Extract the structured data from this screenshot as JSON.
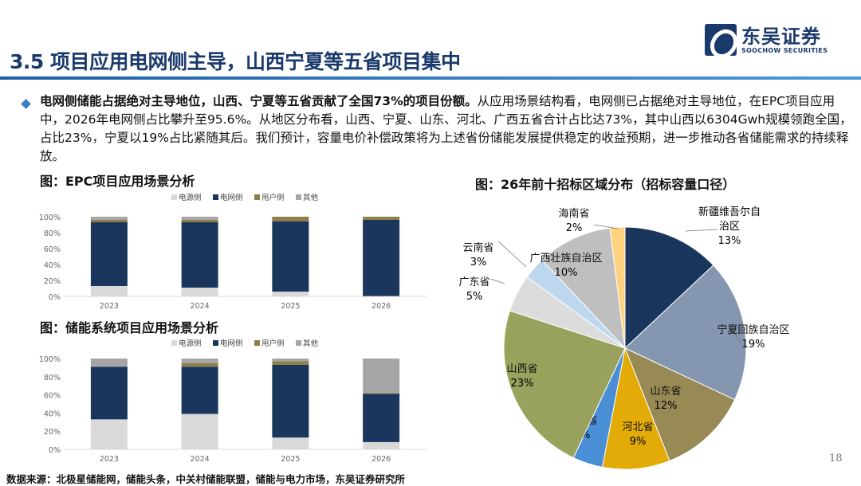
{
  "header": {
    "title": "3.5 项目应用电网侧主导，山西宁夏等五省项目集中",
    "logo_cn": "东吴证券",
    "logo_en": "SOOCHOW SECURITIES"
  },
  "body": {
    "bold": "电网侧储能占据绝对主导地位，山西、宁夏等五省贡献了全国73%的项目份额。",
    "text": "从应用场景结构看，电网侧已占据绝对主导地位，在EPC项目应用中，2026年电网侧占比攀升至95.6%。从地区分布看，山西、宁夏、山东、河北、广西五省合计占比达73%，其中山西以6304Gwh规模领跑全国，占比23%，宁夏以19%占比紧随其后。我们预计，容量电价补偿政策将为上述省份储能发展提供稳定的收益预期，进一步推动各省储能需求的持续释放。"
  },
  "footer": {
    "source": "数据来源：北极星储能网，储能头条，中关村储能联盟，储能与电力市场，东吴证券研究所",
    "page": "18"
  },
  "chart_data": [
    {
      "type": "bar",
      "stacked": true,
      "title": "图：EPC项目应用场景分析",
      "categories": [
        "2023",
        "2024",
        "2025",
        "2026"
      ],
      "ylim": [
        0,
        100
      ],
      "yticks": [
        "0%",
        "20%",
        "40%",
        "60%",
        "80%",
        "100%"
      ],
      "legend": "top",
      "series": [
        {
          "name": "电源侧",
          "color": "#d9d9d9",
          "values": [
            13,
            11,
            6,
            0.4
          ]
        },
        {
          "name": "电网侧",
          "color": "#1a365d",
          "values": [
            80,
            82,
            88,
            95.6
          ]
        },
        {
          "name": "用户侧",
          "color": "#8c7f4a",
          "values": [
            3,
            3,
            6,
            4
          ]
        },
        {
          "name": "其他",
          "color": "#a6a6a6",
          "values": [
            4,
            4,
            0,
            0
          ]
        }
      ]
    },
    {
      "type": "bar",
      "stacked": true,
      "title": "图：储能系统项目应用场景分析",
      "categories": [
        "2023",
        "2024",
        "2025",
        "2026"
      ],
      "ylim": [
        0,
        100
      ],
      "yticks": [
        "0%",
        "20%",
        "40%",
        "60%",
        "80%",
        "100%"
      ],
      "legend": "top",
      "series": [
        {
          "name": "电源侧",
          "color": "#d9d9d9",
          "values": [
            33,
            39,
            13,
            8
          ]
        },
        {
          "name": "电网侧",
          "color": "#1a365d",
          "values": [
            58,
            52,
            80,
            53
          ]
        },
        {
          "name": "用户侧",
          "color": "#8c7f4a",
          "values": [
            0,
            4,
            4,
            1
          ]
        },
        {
          "name": "其他",
          "color": "#a6a6a6",
          "values": [
            9,
            5,
            3,
            38
          ]
        }
      ]
    },
    {
      "type": "pie",
      "title": "图：26年前十招标区域分布（招标容量口径）",
      "slices": [
        {
          "label": "新疆维吾尔自治区",
          "value": 13,
          "pct": "13%",
          "color": "#1a365d"
        },
        {
          "label": "宁夏回族自治区",
          "value": 19,
          "pct": "19%",
          "color": "#8496b0"
        },
        {
          "label": "山东省",
          "value": 12,
          "pct": "12%",
          "color": "#978a55"
        },
        {
          "label": "河北省",
          "value": 9,
          "pct": "9%",
          "color": "#e3ab08"
        },
        {
          "label": "甘肃省",
          "value": 4,
          "pct": "4%",
          "color": "#4a8ed6"
        },
        {
          "label": "山西省",
          "value": 23,
          "pct": "23%",
          "color": "#99a25c"
        },
        {
          "label": "广东省",
          "value": 5,
          "pct": "5%",
          "color": "#dcdcdc"
        },
        {
          "label": "云南省",
          "value": 3,
          "pct": "3%",
          "color": "#bdd7ee"
        },
        {
          "label": "广西壮族自治区",
          "value": 10,
          "pct": "10%",
          "color": "#bfbfbf"
        },
        {
          "label": "海南省",
          "value": 2,
          "pct": "2%",
          "color": "#ffd27f"
        }
      ]
    }
  ]
}
